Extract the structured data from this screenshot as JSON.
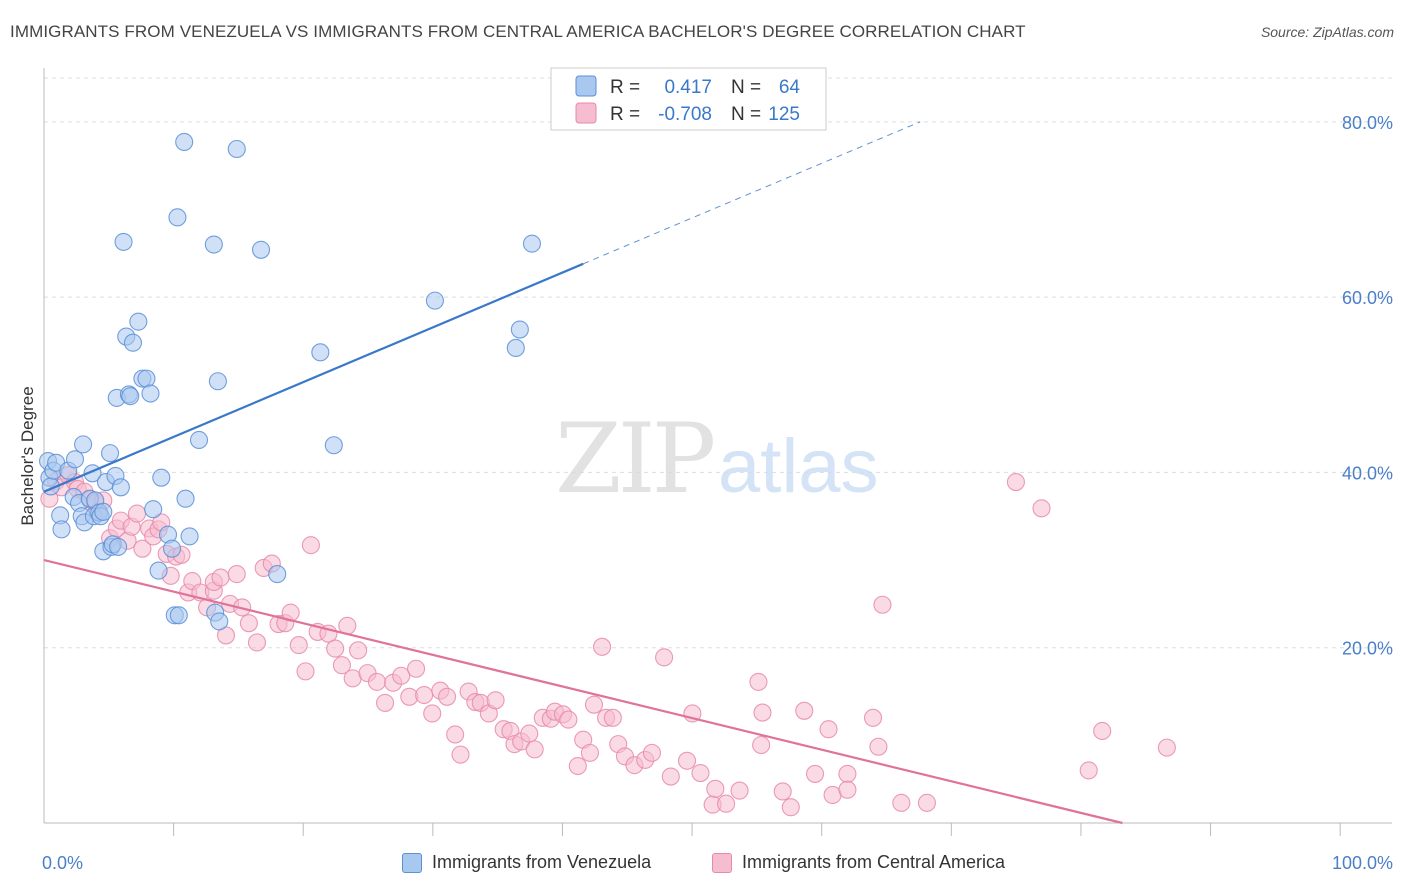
{
  "title": "IMMIGRANTS FROM VENEZUELA VS IMMIGRANTS FROM CENTRAL AMERICA BACHELOR'S DEGREE CORRELATION CHART",
  "source": "Source: ZipAtlas.com",
  "watermark": "ZIPatlas",
  "colors": {
    "blue_fill": "#a9c8f0",
    "blue_stroke": "#5b8fd6",
    "blue_line": "#3a78c9",
    "pink_fill": "#f6bccf",
    "pink_stroke": "#e78aa9",
    "pink_line": "#e0739a",
    "axis_label_blue": "#4a7fc9",
    "grid": "#dddddd"
  },
  "stats_legend": [
    {
      "r_label": "R =",
      "r_value": "0.417",
      "n_label": "N =",
      "n_value": "64",
      "series": "blue"
    },
    {
      "r_label": "R =",
      "r_value": "-0.708",
      "n_label": "N =",
      "n_value": "125",
      "series": "pink"
    }
  ],
  "chart_data": {
    "type": "scatter",
    "title": "IMMIGRANTS FROM VENEZUELA VS IMMIGRANTS FROM CENTRAL AMERICA BACHELOR'S DEGREE CORRELATION CHART",
    "xlabel": "",
    "ylabel": "Bachelor's Degree",
    "xlim": [
      0,
      100
    ],
    "ylim": [
      0,
      85
    ],
    "x_tick_labels": [
      "0.0%",
      "100.0%"
    ],
    "y_ticks": [
      20,
      40,
      60,
      80
    ],
    "y_tick_labels": [
      "20.0%",
      "40.0%",
      "60.0%",
      "80.0%"
    ],
    "grid": true,
    "legend_placement": "bottom",
    "series": [
      {
        "name": "Immigrants from Venezuela",
        "color": "blue",
        "trend": {
          "x0": 0,
          "y0": 37.8,
          "x1": 40,
          "y1": 63.8,
          "dash_to_x": 65,
          "dash_to_y": 80
        },
        "points": [
          [
            0.3,
            41.3
          ],
          [
            0.4,
            39.4
          ],
          [
            0.5,
            38.4
          ],
          [
            0.7,
            40.2
          ],
          [
            0.9,
            41.1
          ],
          [
            1.2,
            35.1
          ],
          [
            1.3,
            33.5
          ],
          [
            1.8,
            40.2
          ],
          [
            2.2,
            37.2
          ],
          [
            2.3,
            41.5
          ],
          [
            2.6,
            36.5
          ],
          [
            2.8,
            35.0
          ],
          [
            2.9,
            43.2
          ],
          [
            3.0,
            34.3
          ],
          [
            3.4,
            37.0
          ],
          [
            3.6,
            39.9
          ],
          [
            3.7,
            35.0
          ],
          [
            3.8,
            36.8
          ],
          [
            4.1,
            35.4
          ],
          [
            4.2,
            35.0
          ],
          [
            4.4,
            35.5
          ],
          [
            4.4,
            31.0
          ],
          [
            4.6,
            38.9
          ],
          [
            4.9,
            42.2
          ],
          [
            5.0,
            31.5
          ],
          [
            5.1,
            31.8
          ],
          [
            5.3,
            39.6
          ],
          [
            5.4,
            48.5
          ],
          [
            5.5,
            31.5
          ],
          [
            5.7,
            38.3
          ],
          [
            5.9,
            66.3
          ],
          [
            6.1,
            55.5
          ],
          [
            6.3,
            48.9
          ],
          [
            6.4,
            48.7
          ],
          [
            6.6,
            54.8
          ],
          [
            7.0,
            57.2
          ],
          [
            7.3,
            50.7
          ],
          [
            7.6,
            50.7
          ],
          [
            7.9,
            49.0
          ],
          [
            8.1,
            35.8
          ],
          [
            8.5,
            28.8
          ],
          [
            8.7,
            39.4
          ],
          [
            9.2,
            32.9
          ],
          [
            9.5,
            31.3
          ],
          [
            9.7,
            23.7
          ],
          [
            9.9,
            69.1
          ],
          [
            10.4,
            77.7
          ],
          [
            10.5,
            37.0
          ],
          [
            10.8,
            32.7
          ],
          [
            11.5,
            43.7
          ],
          [
            12.6,
            66.0
          ],
          [
            12.7,
            24.0
          ],
          [
            12.9,
            50.4
          ],
          [
            13.0,
            23.0
          ],
          [
            14.3,
            76.9
          ],
          [
            16.1,
            65.4
          ],
          [
            17.3,
            28.4
          ],
          [
            20.5,
            53.7
          ],
          [
            21.5,
            43.1
          ],
          [
            29.0,
            59.6
          ],
          [
            35.0,
            54.2
          ],
          [
            35.3,
            56.3
          ],
          [
            36.2,
            66.1
          ],
          [
            10.0,
            23.7
          ]
        ]
      },
      {
        "name": "Immigrants from Central America",
        "color": "pink",
        "trend": {
          "x0": 0,
          "y0": 30.0,
          "x1": 80,
          "y1": 0.0
        },
        "points": [
          [
            0.4,
            37.0
          ],
          [
            0.9,
            39.0
          ],
          [
            1.3,
            38.3
          ],
          [
            1.8,
            39.7
          ],
          [
            2.3,
            38.9
          ],
          [
            2.5,
            38.1
          ],
          [
            3.0,
            37.8
          ],
          [
            3.4,
            36.9
          ],
          [
            3.8,
            36.5
          ],
          [
            4.0,
            35.5
          ],
          [
            4.4,
            36.8
          ],
          [
            4.9,
            32.5
          ],
          [
            5.4,
            33.6
          ],
          [
            5.7,
            34.5
          ],
          [
            6.2,
            32.2
          ],
          [
            6.5,
            33.8
          ],
          [
            6.9,
            35.3
          ],
          [
            7.3,
            31.3
          ],
          [
            7.8,
            33.6
          ],
          [
            8.1,
            32.7
          ],
          [
            8.5,
            33.5
          ],
          [
            8.7,
            34.3
          ],
          [
            9.1,
            30.7
          ],
          [
            9.4,
            28.2
          ],
          [
            9.8,
            30.4
          ],
          [
            10.2,
            30.6
          ],
          [
            10.7,
            26.3
          ],
          [
            11.0,
            27.6
          ],
          [
            11.6,
            26.3
          ],
          [
            12.1,
            24.6
          ],
          [
            12.6,
            26.5
          ],
          [
            12.6,
            27.5
          ],
          [
            13.1,
            28.0
          ],
          [
            13.5,
            21.4
          ],
          [
            13.8,
            25.0
          ],
          [
            14.3,
            28.4
          ],
          [
            14.7,
            24.6
          ],
          [
            15.2,
            22.8
          ],
          [
            15.8,
            20.6
          ],
          [
            16.3,
            29.1
          ],
          [
            16.9,
            29.6
          ],
          [
            17.4,
            22.7
          ],
          [
            17.9,
            22.8
          ],
          [
            18.3,
            24.0
          ],
          [
            18.9,
            20.3
          ],
          [
            19.4,
            17.3
          ],
          [
            19.8,
            31.7
          ],
          [
            20.3,
            21.8
          ],
          [
            21.1,
            21.6
          ],
          [
            21.6,
            19.9
          ],
          [
            22.1,
            18.0
          ],
          [
            22.5,
            22.5
          ],
          [
            22.9,
            16.5
          ],
          [
            23.3,
            19.7
          ],
          [
            24.0,
            17.1
          ],
          [
            24.7,
            16.1
          ],
          [
            25.3,
            13.7
          ],
          [
            25.9,
            16.0
          ],
          [
            26.5,
            16.8
          ],
          [
            27.1,
            14.4
          ],
          [
            27.6,
            17.6
          ],
          [
            28.2,
            14.6
          ],
          [
            28.8,
            12.5
          ],
          [
            29.4,
            15.1
          ],
          [
            29.9,
            14.4
          ],
          [
            30.5,
            10.1
          ],
          [
            30.9,
            7.8
          ],
          [
            31.5,
            15.0
          ],
          [
            32.0,
            13.8
          ],
          [
            32.4,
            13.7
          ],
          [
            33.0,
            12.5
          ],
          [
            33.5,
            14.0
          ],
          [
            34.1,
            10.7
          ],
          [
            34.6,
            10.5
          ],
          [
            34.9,
            9.0
          ],
          [
            35.4,
            9.3
          ],
          [
            36.0,
            10.2
          ],
          [
            36.4,
            8.4
          ],
          [
            37.0,
            12.0
          ],
          [
            37.6,
            11.9
          ],
          [
            37.9,
            12.7
          ],
          [
            38.5,
            12.4
          ],
          [
            38.9,
            11.8
          ],
          [
            39.6,
            6.5
          ],
          [
            40.0,
            9.5
          ],
          [
            40.5,
            8.0
          ],
          [
            40.8,
            13.5
          ],
          [
            41.4,
            20.1
          ],
          [
            41.7,
            12.0
          ],
          [
            42.2,
            12.0
          ],
          [
            42.6,
            9.0
          ],
          [
            43.1,
            7.6
          ],
          [
            43.8,
            6.6
          ],
          [
            44.6,
            7.2
          ],
          [
            45.1,
            8.0
          ],
          [
            46.0,
            18.9
          ],
          [
            46.5,
            5.3
          ],
          [
            47.7,
            7.1
          ],
          [
            48.1,
            12.5
          ],
          [
            48.7,
            5.7
          ],
          [
            49.6,
            2.1
          ],
          [
            49.8,
            3.9
          ],
          [
            50.6,
            2.2
          ],
          [
            51.6,
            3.7
          ],
          [
            53.0,
            16.1
          ],
          [
            53.3,
            12.6
          ],
          [
            53.2,
            8.9
          ],
          [
            54.8,
            3.6
          ],
          [
            55.4,
            1.8
          ],
          [
            56.4,
            12.8
          ],
          [
            57.2,
            5.6
          ],
          [
            58.2,
            10.7
          ],
          [
            58.5,
            3.2
          ],
          [
            59.6,
            5.6
          ],
          [
            59.6,
            3.8
          ],
          [
            61.5,
            12.0
          ],
          [
            61.9,
            8.7
          ],
          [
            62.2,
            24.9
          ],
          [
            63.6,
            2.3
          ],
          [
            65.5,
            2.3
          ],
          [
            72.1,
            38.9
          ],
          [
            74.0,
            35.9
          ],
          [
            77.5,
            6.0
          ],
          [
            78.5,
            10.5
          ],
          [
            83.3,
            8.6
          ]
        ]
      }
    ]
  },
  "legend_bottom": [
    {
      "label": "Immigrants from Venezuela",
      "series": "blue"
    },
    {
      "label": "Immigrants from Central America",
      "series": "pink"
    }
  ]
}
